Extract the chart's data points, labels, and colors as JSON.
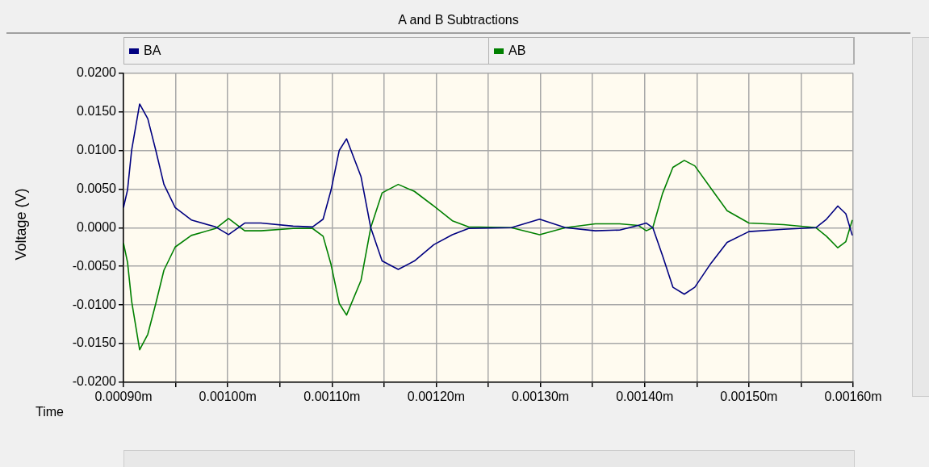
{
  "chart_data": {
    "type": "line",
    "title": "A and B Subtractions",
    "xlabel": "Time",
    "ylabel": "Voltage (V)",
    "x": [
      0.0009,
      0.0009039,
      0.0009078,
      0.0009155,
      0.0009233,
      0.000931,
      0.0009388,
      0.0009496,
      0.0009651,
      0.0009884,
      0.0010008,
      0.0010163,
      0.0010318,
      0.0010628,
      0.0010814,
      0.0010915,
      0.0010992,
      0.001107,
      0.001114,
      0.0011279,
      0.0011372,
      0.0011481,
      0.0011636,
      0.0011791,
      0.0011977,
      0.0012155,
      0.001231,
      0.0012721,
      0.0012992,
      0.001324,
      0.0013527,
      0.001376,
      0.0013938,
      0.0014016,
      0.0014078,
      0.0014171,
      0.0014271,
      0.001438,
      0.0014481,
      0.0014636,
      0.0014791,
      0.0015,
      0.0015333,
      0.0015643,
      0.0015744,
      0.0015853,
      0.001593,
      0.0015992
    ],
    "series": [
      {
        "name": "BA",
        "color": "#000080",
        "values": [
          0.0026,
          0.0049,
          0.01,
          0.016,
          0.0141,
          0.01,
          0.0056,
          0.0026,
          0.001,
          0.0001,
          -0.0009,
          0.0006,
          0.0006,
          0.0002,
          0.0001,
          0.0011,
          0.0049,
          0.01,
          0.0115,
          0.0066,
          0,
          -0.0043,
          -0.0054,
          -0.0043,
          -0.0022,
          -0.0009,
          -0.0001,
          0,
          0.0011,
          0,
          -0.0004,
          -0.0003,
          0.0003,
          0.0006,
          0,
          -0.0036,
          -0.0077,
          -0.0086,
          -0.0077,
          -0.0046,
          -0.0019,
          -0.0005,
          -0.0002,
          0,
          0.0011,
          0.0028,
          0.0018,
          -0.001
        ]
      },
      {
        "name": "AB",
        "color": "#008000",
        "values": [
          -0.002,
          -0.0045,
          -0.0095,
          -0.0158,
          -0.0138,
          -0.0098,
          -0.0055,
          -0.0025,
          -0.001,
          -0.0001,
          0.0012,
          -0.0004,
          -0.0004,
          -0.0001,
          -0.0001,
          -0.0011,
          -0.0048,
          -0.0098,
          -0.0113,
          -0.0068,
          0,
          0.0045,
          0.0056,
          0.0047,
          0.0028,
          0.0009,
          0.0001,
          0,
          -0.0009,
          0,
          0.0005,
          0.0005,
          0.0003,
          -0.0004,
          0,
          0.0044,
          0.0078,
          0.0087,
          0.008,
          0.0051,
          0.0022,
          0.0006,
          0.0004,
          0,
          -0.0011,
          -0.0026,
          -0.0018,
          0.001
        ]
      }
    ],
    "xlim": [
      0.0009,
      0.0016
    ],
    "xticks": [
      {
        "value": 0.0009,
        "label": "0.00090m"
      },
      {
        "value": 0.00095,
        "label": null
      },
      {
        "value": 0.001,
        "label": "0.00100m"
      },
      {
        "value": 0.00105,
        "label": null
      },
      {
        "value": 0.0011,
        "label": "0.00110m"
      },
      {
        "value": 0.00115,
        "label": null
      },
      {
        "value": 0.0012,
        "label": "0.00120m"
      },
      {
        "value": 0.00125,
        "label": null
      },
      {
        "value": 0.0013,
        "label": "0.00130m"
      },
      {
        "value": 0.00135,
        "label": null
      },
      {
        "value": 0.0014,
        "label": "0.00140m"
      },
      {
        "value": 0.00145,
        "label": null
      },
      {
        "value": 0.0015,
        "label": "0.00150m"
      },
      {
        "value": 0.00155,
        "label": null
      },
      {
        "value": 0.0016,
        "label": "0.00160m"
      }
    ],
    "ylim": [
      -0.02,
      0.02
    ],
    "yticks": [
      {
        "value": -0.02,
        "label": "-0.0200"
      },
      {
        "value": -0.015,
        "label": "-0.0150"
      },
      {
        "value": -0.01,
        "label": "-0.0100"
      },
      {
        "value": -0.005,
        "label": "-0.0050"
      },
      {
        "value": 0,
        "label": "0.0000"
      },
      {
        "value": 0.005,
        "label": "0.0050"
      },
      {
        "value": 0.01,
        "label": "0.0100"
      },
      {
        "value": 0.015,
        "label": "0.0150"
      },
      {
        "value": 0.02,
        "label": "0.0200"
      }
    ],
    "grid": true,
    "legend": "top",
    "marker": "none",
    "line_style": "solid"
  }
}
